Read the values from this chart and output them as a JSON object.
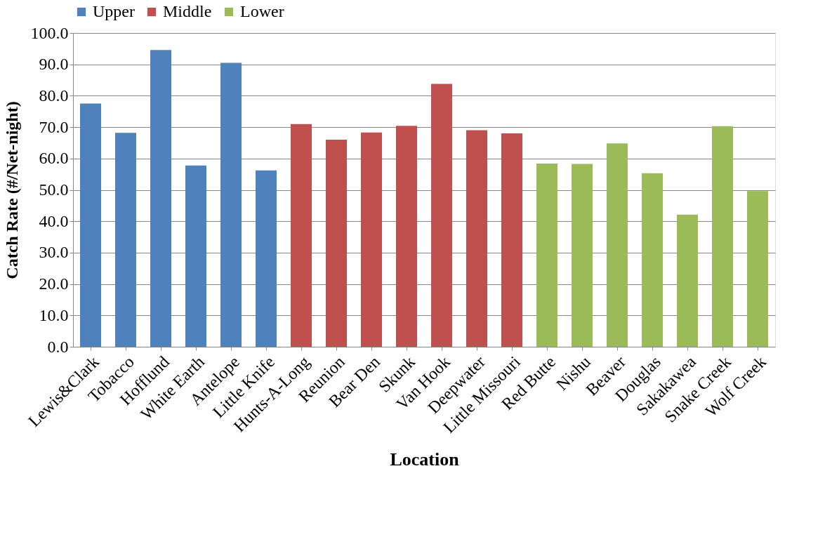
{
  "chart_data": {
    "type": "bar",
    "xlabel": "Location",
    "ylabel": "Catch Rate (#/Net-night)",
    "categories": [
      "Lewis&Clark",
      "Tobacco",
      "Hofflund",
      "White Earth",
      "Antelope",
      "Little Knife",
      "Hunts-A-Long",
      "Reunion",
      "Bear Den",
      "Skunk",
      "Van Hook",
      "Deepwater",
      "Little Missouri",
      "Red Butte",
      "Nishu",
      "Beaver",
      "Douglas",
      "Sakakawea",
      "Snake Creek",
      "Wolf Creek"
    ],
    "series": [
      {
        "name": "Upper",
        "color": "#4f81bd",
        "values": [
          77.5,
          68.2,
          94.6,
          57.8,
          90.5,
          56.2,
          null,
          null,
          null,
          null,
          null,
          null,
          null,
          null,
          null,
          null,
          null,
          null,
          null,
          null
        ]
      },
      {
        "name": "Middle",
        "color": "#c0504d",
        "values": [
          null,
          null,
          null,
          null,
          null,
          null,
          71.0,
          66.0,
          68.3,
          70.4,
          83.8,
          69.0,
          68.0,
          null,
          null,
          null,
          null,
          null,
          null,
          null
        ]
      },
      {
        "name": "Lower",
        "color": "#9bbb59",
        "values": [
          null,
          null,
          null,
          null,
          null,
          null,
          null,
          null,
          null,
          null,
          null,
          null,
          null,
          58.4,
          58.3,
          64.8,
          55.3,
          42.1,
          70.3,
          49.6
        ]
      }
    ],
    "ylim": [
      0,
      100
    ],
    "yticks": [
      {
        "value": 0,
        "label": "0.0"
      },
      {
        "value": 10,
        "label": "10.0"
      },
      {
        "value": 20,
        "label": "20.0"
      },
      {
        "value": 30,
        "label": "30.0"
      },
      {
        "value": 40,
        "label": "40.0"
      },
      {
        "value": 50,
        "label": "50.0"
      },
      {
        "value": 60,
        "label": "60.0"
      },
      {
        "value": 70,
        "label": "70.0"
      },
      {
        "value": 80,
        "label": "80.0"
      },
      {
        "value": 90,
        "label": "90.0"
      },
      {
        "value": 100,
        "label": "100.0"
      }
    ],
    "grid": "y",
    "legend": "top"
  }
}
